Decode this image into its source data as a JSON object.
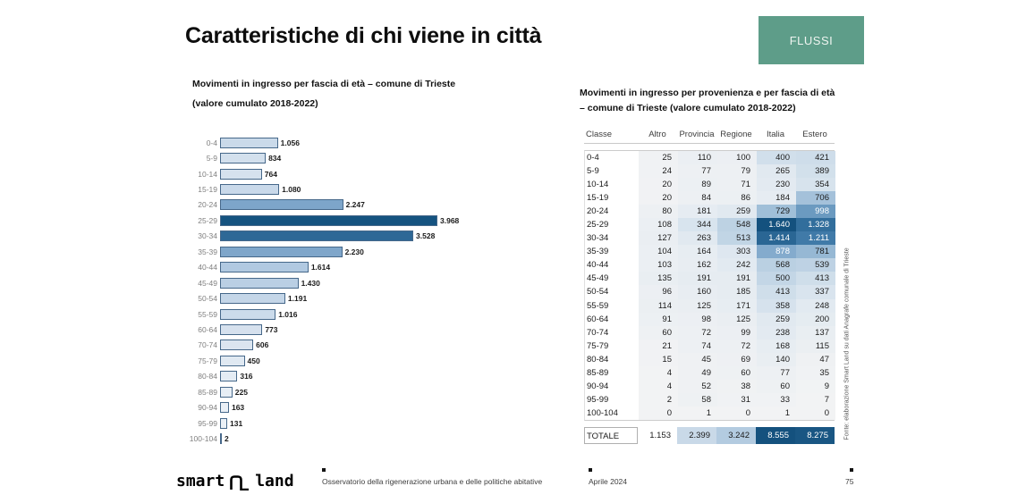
{
  "slide": {
    "title": "Caratteristiche di chi viene in città",
    "badge": {
      "label": "FLUSSI",
      "color": "#5e9d89"
    }
  },
  "footer": {
    "logo": {
      "left": "smart",
      "right": "land"
    },
    "observatory": "Osservatorio della rigenerazione urbana e delle politiche abitative",
    "date": "Aprile 2024",
    "page_number": "75"
  },
  "source_note": "Fonte: elaborazione Smart Land su dati Anagrafe comunale di Trieste",
  "chart_data": [
    {
      "type": "bar",
      "orientation": "horizontal",
      "title": "Movimenti in ingresso  per fascia di età – comune di Trieste",
      "subtitle": "(valore cumulato 2018-2022)",
      "categories": [
        "0-4",
        "5-9",
        "10-14",
        "15-19",
        "20-24",
        "25-29",
        "30-34",
        "35-39",
        "40-44",
        "45-49",
        "50-54",
        "55-59",
        "60-64",
        "70-74",
        "75-79",
        "80-84",
        "85-89",
        "90-94",
        "95-99",
        "100-104"
      ],
      "values": [
        1056,
        834,
        764,
        1080,
        2247,
        3968,
        3528,
        2230,
        1614,
        1430,
        1191,
        1016,
        773,
        606,
        450,
        316,
        225,
        163,
        131,
        2
      ],
      "xlim": [
        0,
        3968
      ],
      "value_labels": true,
      "color_scale": {
        "min": "#eef3f8",
        "max": "#155380",
        "rule": "fill shade proportional to value"
      }
    },
    {
      "type": "heatmap",
      "title": "Movimenti in ingresso per provenienza e per fascia di età – comune di Trieste (valore cumulato 2018-2022)",
      "columns": [
        "Classe",
        "Altro",
        "Provincia",
        "Regione",
        "Italia",
        "Estero"
      ],
      "rows": [
        {
          "label": "0-4",
          "values": [
            25,
            110,
            100,
            400,
            421
          ]
        },
        {
          "label": "5-9",
          "values": [
            24,
            77,
            79,
            265,
            389
          ]
        },
        {
          "label": "10-14",
          "values": [
            20,
            89,
            71,
            230,
            354
          ]
        },
        {
          "label": "15-19",
          "values": [
            20,
            84,
            86,
            184,
            706
          ]
        },
        {
          "label": "20-24",
          "values": [
            80,
            181,
            259,
            729,
            998
          ]
        },
        {
          "label": "25-29",
          "values": [
            108,
            344,
            548,
            1640,
            1328
          ]
        },
        {
          "label": "30-34",
          "values": [
            127,
            263,
            513,
            1414,
            1211
          ]
        },
        {
          "label": "35-39",
          "values": [
            104,
            164,
            303,
            878,
            781
          ]
        },
        {
          "label": "40-44",
          "values": [
            103,
            162,
            242,
            568,
            539
          ]
        },
        {
          "label": "45-49",
          "values": [
            135,
            191,
            191,
            500,
            413
          ]
        },
        {
          "label": "50-54",
          "values": [
            96,
            160,
            185,
            413,
            337
          ]
        },
        {
          "label": "55-59",
          "values": [
            114,
            125,
            171,
            358,
            248
          ]
        },
        {
          "label": "60-64",
          "values": [
            91,
            98,
            125,
            259,
            200
          ]
        },
        {
          "label": "70-74",
          "values": [
            60,
            72,
            99,
            238,
            137
          ]
        },
        {
          "label": "75-79",
          "values": [
            21,
            74,
            72,
            168,
            115
          ]
        },
        {
          "label": "80-84",
          "values": [
            15,
            45,
            69,
            140,
            47
          ]
        },
        {
          "label": "85-89",
          "values": [
            4,
            49,
            60,
            77,
            35
          ]
        },
        {
          "label": "90-94",
          "values": [
            4,
            52,
            38,
            60,
            9
          ]
        },
        {
          "label": "95-99",
          "values": [
            2,
            58,
            31,
            33,
            7
          ]
        },
        {
          "label": "100-104",
          "values": [
            0,
            1,
            0,
            1,
            0
          ]
        }
      ],
      "total_row": {
        "label": "TOTALE",
        "values": [
          1153,
          2399,
          3242,
          8555,
          8275
        ]
      },
      "color_scale": {
        "min": "#f2f3f4",
        "max": "#14517e",
        "body_max_value": 1640,
        "total_max_value": 8555
      },
      "legend": "none"
    }
  ]
}
